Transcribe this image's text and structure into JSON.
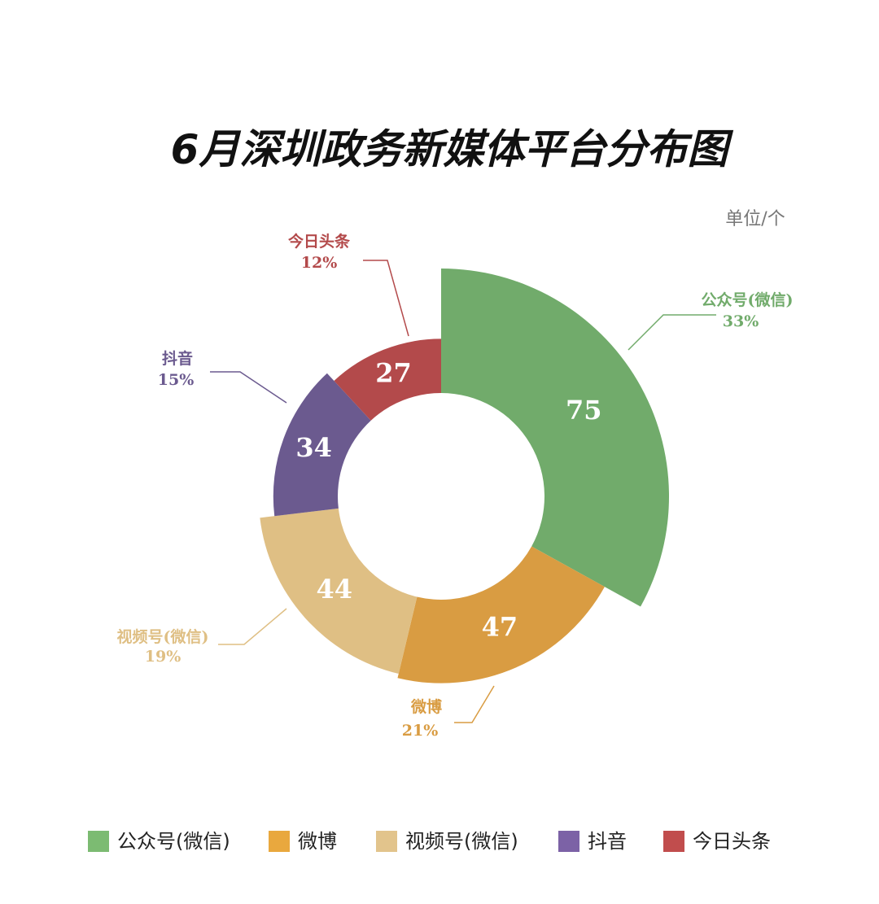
{
  "chart_data": {
    "type": "pie",
    "title": "6月深圳政务新媒体平台分布图",
    "unit": "单位/个",
    "categories": [
      "公众号(微信)",
      "微博",
      "视频号(微信)",
      "抖音",
      "今日头条"
    ],
    "values": [
      75,
      47,
      44,
      34,
      27
    ],
    "shares": [
      {
        "value": 33,
        "label": "33%"
      },
      {
        "value": 21,
        "label": "21%"
      },
      {
        "value": 19,
        "label": "19%"
      },
      {
        "value": 15,
        "label": "15%"
      },
      {
        "value": 12,
        "label": "12%"
      }
    ],
    "colors": [
      "#71ab6b",
      "#d99c42",
      "#dfbf84",
      "#6b5a8f",
      "#b34a4b"
    ],
    "legend_colors": [
      "#7cbb72",
      "#e9a83e",
      "#e2c48c",
      "#7c62a6",
      "#c14d4d"
    ],
    "legend": "bottom"
  }
}
